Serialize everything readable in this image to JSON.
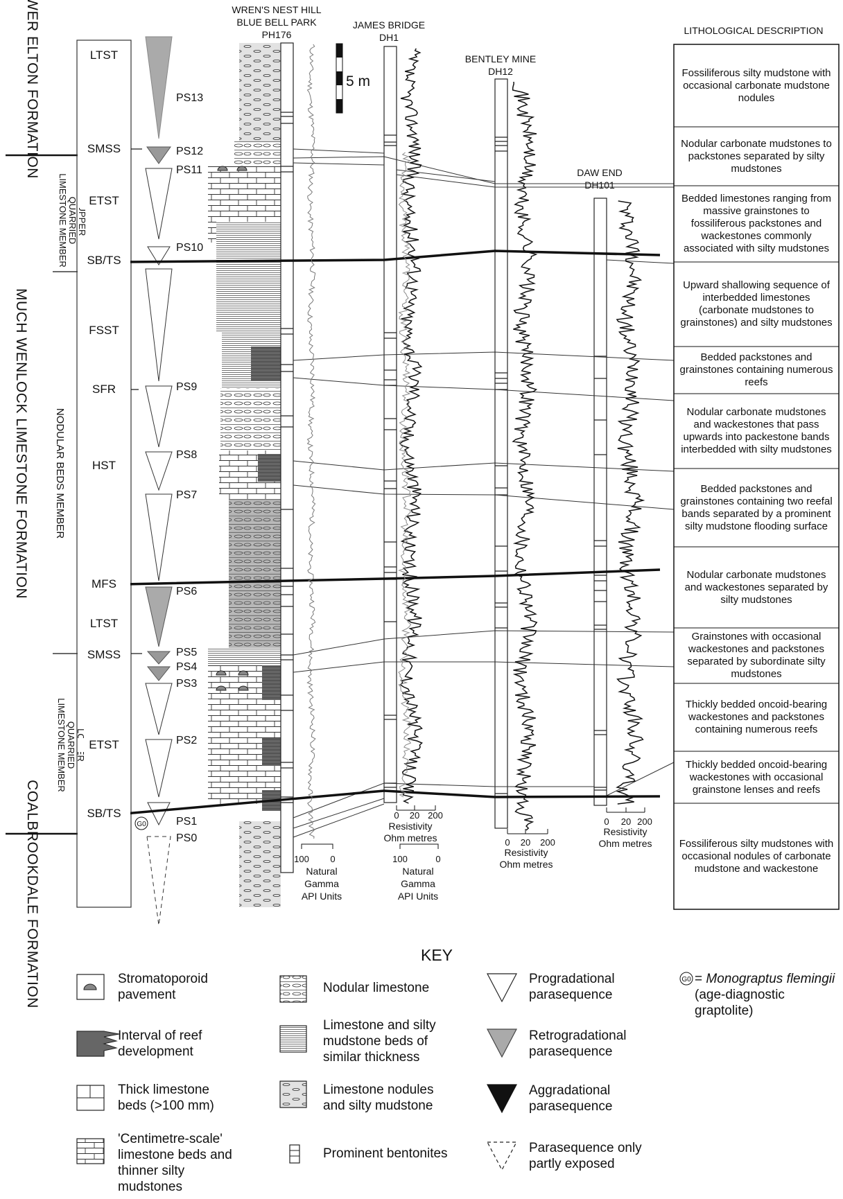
{
  "formations": {
    "lower_elton": "LOWER ELTON FORMATION",
    "much_wenlock": "MUCH WENLOCK LIMESTONE FORMATION",
    "coalbrookdale": "COALBROOKDALE FORMATION"
  },
  "members": {
    "upper_quarried": [
      "UPPER",
      "QUARRIED",
      "LIMESTONE MEMBER"
    ],
    "nodular_beds": "NODULAR  BEDS MEMBER",
    "lower_quarried": [
      "LOWER",
      "QUARRIED",
      "LIMESTONE MEMBER"
    ]
  },
  "systems_tracts": [
    "LTST",
    "SMSS",
    "ETST",
    "SB/TS",
    "FSST",
    "SFR",
    "HST",
    "MFS",
    "LTST",
    "SMSS",
    "ETST",
    "SB/TS"
  ],
  "parasequences": [
    "PS13",
    "PS12",
    "PS11",
    "PS10",
    "PS9",
    "PS8",
    "PS7",
    "PS6",
    "PS5",
    "PS4",
    "PS3",
    "PS2",
    "PS1",
    "PS0"
  ],
  "graptolite_marker": "G0",
  "scale_bar": "5 m",
  "sections": {
    "wrens_nest": [
      "WREN'S NEST HILL",
      "BLUE BELL PARK",
      "PH176"
    ],
    "james_bridge": [
      "JAMES BRIDGE",
      "DH1"
    ],
    "bentley_mine": [
      "BENTLEY MINE",
      "DH12"
    ],
    "daw_end": [
      "DAW END",
      "DH101"
    ]
  },
  "gamma_axis": {
    "ticks": [
      "100",
      "0"
    ],
    "label": [
      "Natural",
      "Gamma",
      "API Units"
    ]
  },
  "resistivity_axis": {
    "ticks": [
      "0",
      "20",
      "200"
    ],
    "label": [
      "Resistivity",
      "Ohm metres"
    ]
  },
  "lithology_header": "LITHOLOGICAL DESCRIPTION",
  "lithology": [
    "Fossiliferous silty mudstone with occasional carbonate mudstone nodules",
    "Nodular carbonate mudstones to packstones separated by silty mudstones",
    "Bedded limestones ranging from massive grainstones to fossiliferous packstones and wackestones commonly associated with silty mudstones",
    "Upward shallowing sequence of interbedded limestones (carbonate mudstones to grainstones) and silty mudstones",
    "Bedded packstones and grainstones containing numerous reefs",
    "Nodular carbonate mudstones and wackestones that pass upwards into packestone bands interbedded with silty mudstones",
    "Bedded packstones and grainstones containing two reefal bands separated by a prominent silty mudstone flooding surface",
    "Nodular carbonate mudstones and wackestones separated by silty mudstones",
    "Grainstones with occasional wackestones and packstones separated by subordinate silty mudstones",
    "Thickly bedded oncoid-bearing wackestones and packstones containing numerous reefs",
    "Thickly bedded oncoid-bearing wackestones with occasional grainstone lenses and reefs",
    "Fossiliferous silty mudstones with occasional nodules of carbonate mudstone and wackestone"
  ],
  "key": {
    "title": "KEY",
    "stromatoporoid": "Stromatoporoid pavement",
    "reef": "Interval of reef development",
    "thick_limestone": "Thick limestone beds (>100 mm)",
    "cm_scale": "'Centimetre-scale' limestone beds and thinner silty mudstones",
    "nodular": "Nodular limestone",
    "similar_thickness": "Limestone and silty mudstone beds of similar thickness",
    "nodules_mudstone": "Limestone nodules and silty mudstone",
    "bentonites": "Prominent bentonites",
    "progradational": "Progradational parasequence",
    "retrogradational": "Retrogradational parasequence",
    "aggradational": "Aggradational parasequence",
    "partly_exposed": "Parasequence only partly exposed",
    "graptolite_eq": "= ",
    "graptolite_name": "Monograptus flemingii",
    "graptolite_rest": " (age-diagnostic graptolite)"
  }
}
